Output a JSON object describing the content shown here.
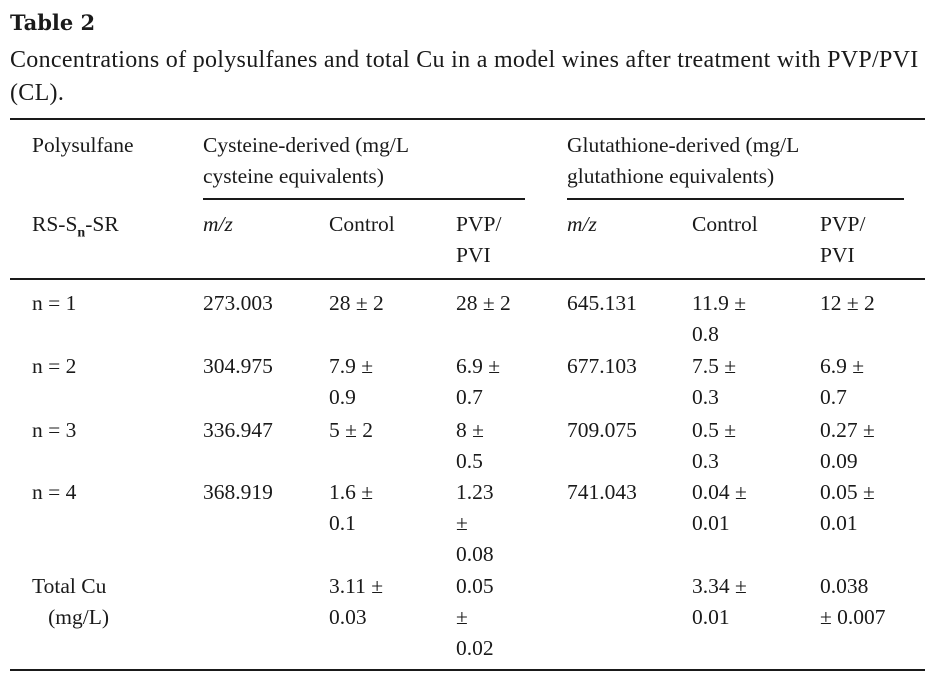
{
  "table": {
    "label": "Table 2",
    "caption": "Concentrations of polysulfanes and total Cu in a model wines after treatment with PVP/PVI (CL).",
    "headers": {
      "col1_top": "Polysulfane",
      "cysteine_group": "Cysteine-derived (mg/L\ncysteine equivalents)",
      "glutathione_group": "Glutathione-derived (mg/L\nglutathione equivalents)",
      "col1_sub_pre": "RS-S",
      "col1_sub_n": "n",
      "col1_sub_post": "-SR",
      "mz": "m/z",
      "control": "Control",
      "pvp": "PVP/\nPVI"
    },
    "rows": [
      {
        "label": "n = 1",
        "cys_mz": "273.003",
        "cys_control": "28 ± 2",
        "cys_pvp": "28 ± 2",
        "glu_mz": "645.131",
        "glu_control": "11.9 ±\n0.8",
        "glu_pvp": "12 ± 2"
      },
      {
        "label": "n = 2",
        "cys_mz": "304.975",
        "cys_control": "7.9 ±\n0.9",
        "cys_pvp": "6.9 ±\n0.7",
        "glu_mz": "677.103",
        "glu_control": "7.5 ±\n0.3",
        "glu_pvp": "6.9 ±\n0.7"
      },
      {
        "label": "n = 3",
        "cys_mz": "336.947",
        "cys_control": "5 ± 2",
        "cys_pvp": "8 ±\n0.5",
        "glu_mz": "709.075",
        "glu_control": "0.5 ±\n0.3",
        "glu_pvp": "0.27 ±\n0.09"
      },
      {
        "label": "n = 4",
        "cys_mz": "368.919",
        "cys_control": "1.6 ±\n0.1",
        "cys_pvp": "1.23\n±\n0.08",
        "glu_mz": "741.043",
        "glu_control": "0.04 ±\n0.01",
        "glu_pvp": "0.05 ±\n0.01"
      },
      {
        "label": "Total Cu\n   (mg/L)",
        "cys_mz": "",
        "cys_control": "3.11 ±\n0.03",
        "cys_pvp": "0.05\n±\n0.02",
        "glu_mz": "",
        "glu_control": "3.34 ±\n0.01",
        "glu_pvp": "0.038\n± 0.007"
      }
    ]
  }
}
